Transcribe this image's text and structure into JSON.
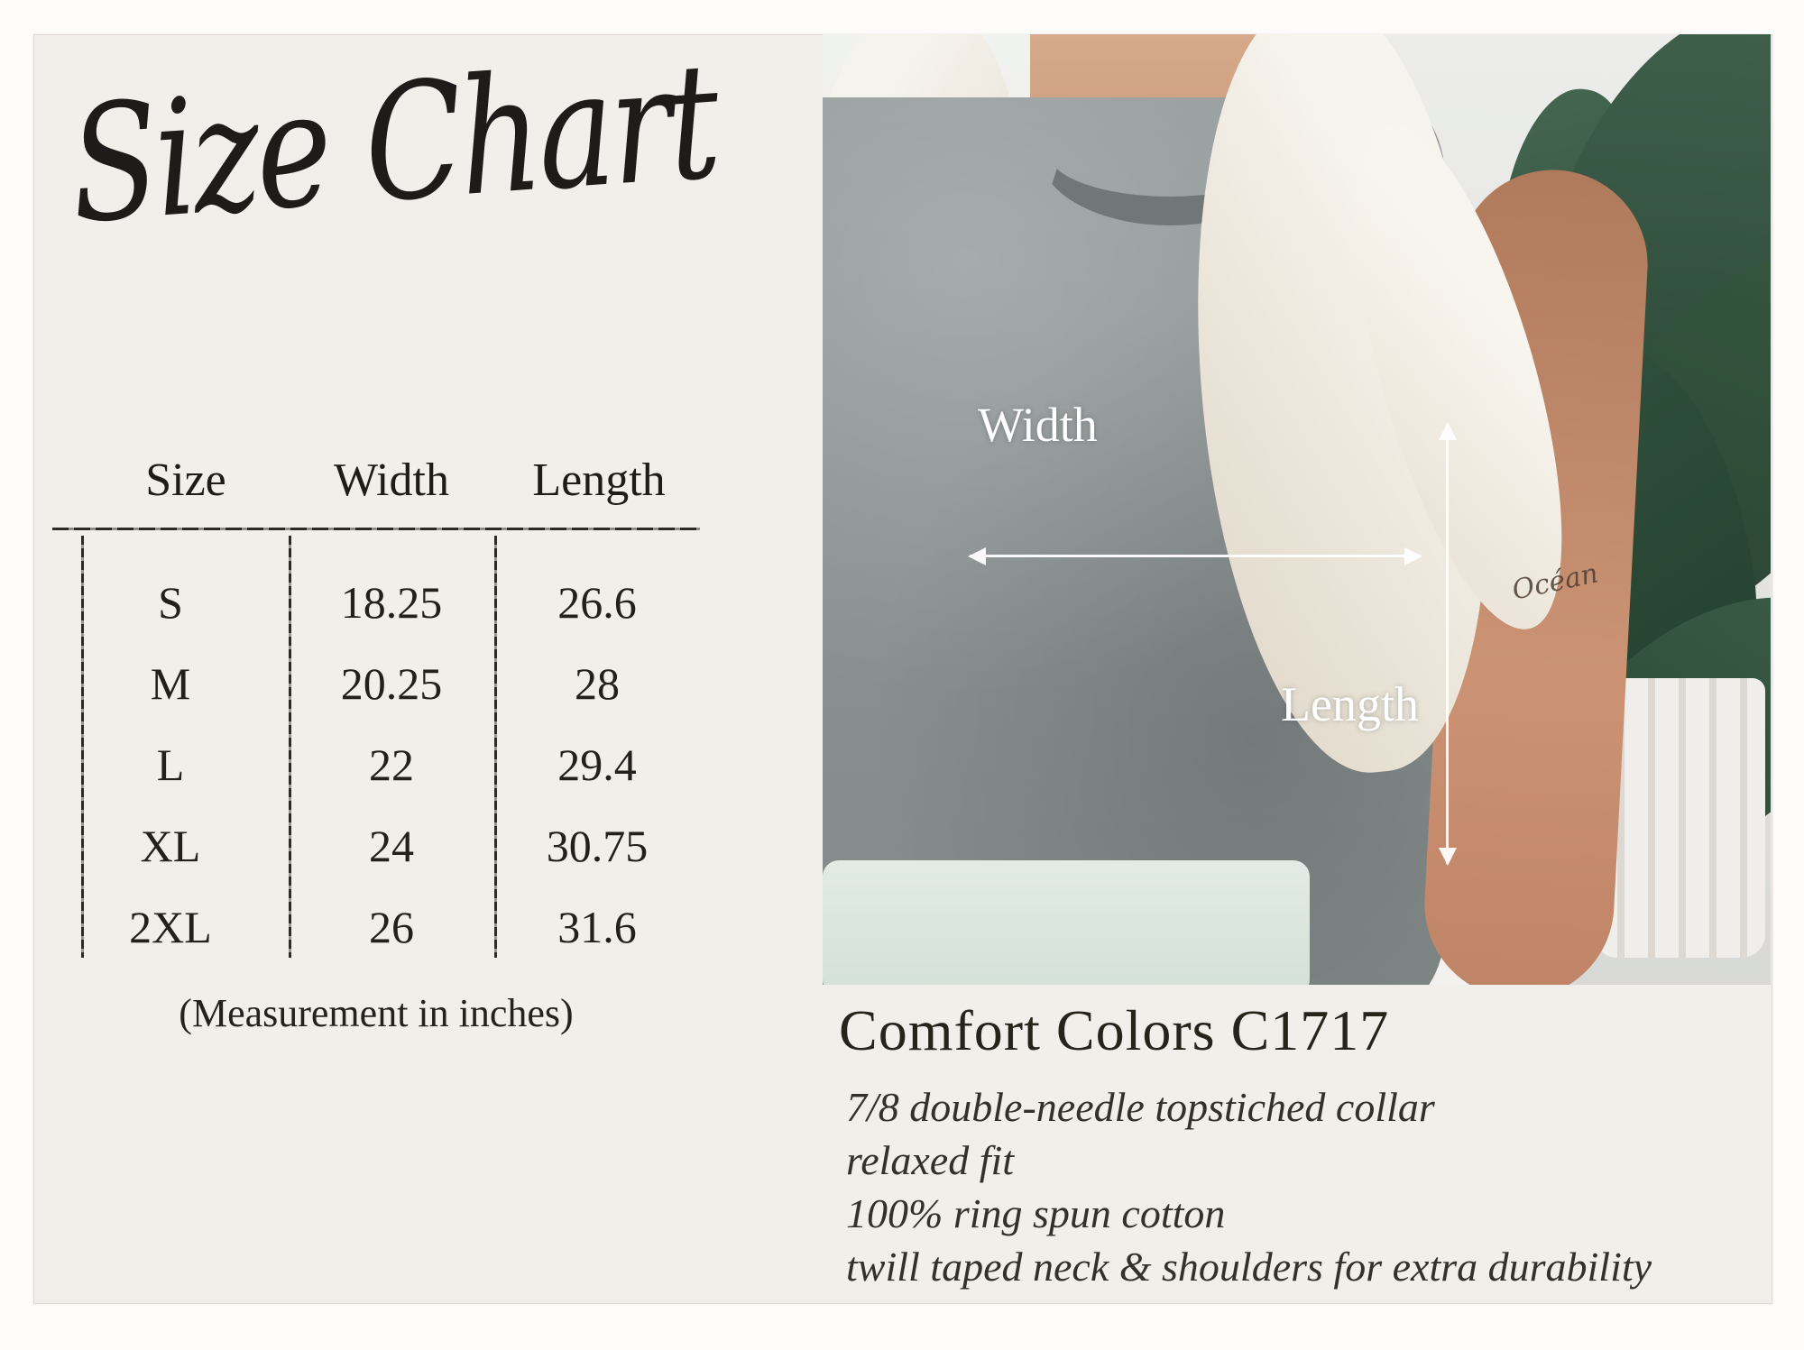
{
  "colors": {
    "card_bg": "#f2eeea",
    "ink": "#26241f",
    "photo_label": "#ffffff",
    "shirt_gray": "#8e9595",
    "plant_green": "#35523f"
  },
  "title": {
    "text": "Size Chart"
  },
  "size_table": {
    "headers": {
      "size": "Size",
      "width": "Width",
      "length": "Length"
    },
    "rows": [
      {
        "size": "S",
        "width": "18.25",
        "length": "26.6"
      },
      {
        "size": "M",
        "width": "20.25",
        "length": "28"
      },
      {
        "size": "L",
        "width": "22",
        "length": "29.4"
      },
      {
        "size": "XL",
        "width": "24",
        "length": "30.75"
      },
      {
        "size": "2XL",
        "width": "26",
        "length": "31.6"
      }
    ],
    "caption": "(Measurement in inches)"
  },
  "photo": {
    "width_label": "Width",
    "length_label": "Length",
    "tattoo_text": "Océan"
  },
  "product": {
    "heading": "Comfort Colors C1717",
    "details": [
      "7/8 double-needle topstiched collar",
      "relaxed fit",
      "100% ring spun cotton",
      "twill taped neck & shoulders for extra durability"
    ]
  },
  "chart_data": {
    "type": "table",
    "title": "Size Chart",
    "units": "inches",
    "columns": [
      "Size",
      "Width",
      "Length"
    ],
    "rows": [
      [
        "S",
        18.25,
        26.6
      ],
      [
        "M",
        20.25,
        28
      ],
      [
        "L",
        22,
        29.4
      ],
      [
        "XL",
        24,
        30.75
      ],
      [
        "2XL",
        26,
        31.6
      ]
    ]
  }
}
